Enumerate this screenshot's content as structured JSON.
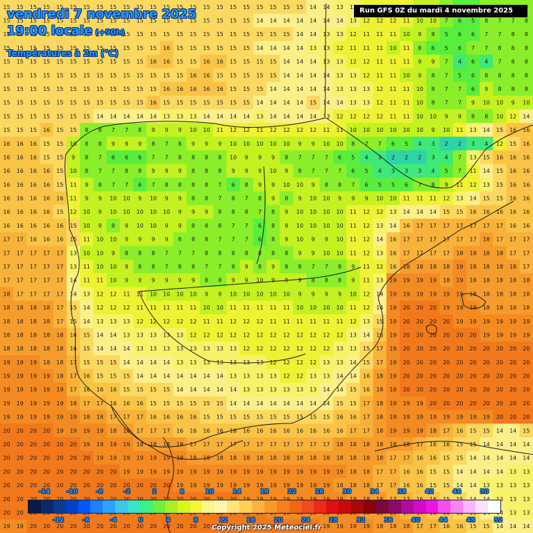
{
  "header": {
    "date_line": "vendredi 7 novembre 2025",
    "time_line": "19:00 locale",
    "offset": "(+90h)",
    "variable": "Températures à 2m (°C)",
    "run_info": "Run GFS 0Z du mardi 4 novembre 2025"
  },
  "legend": {
    "top_labels": [
      "-14",
      "-10",
      "-6",
      "-2",
      "2",
      "6",
      "10",
      "14",
      "18",
      "22",
      "26",
      "30",
      "34",
      "38",
      "42",
      "46",
      "50"
    ],
    "bottom_labels": [
      "-12",
      "-8",
      "-4",
      "0",
      "4",
      "8",
      "12",
      "16",
      "20",
      "24",
      "28",
      "32",
      "36",
      "40",
      "44",
      "48",
      "52"
    ],
    "colors": [
      "#0b1a4a",
      "#0a2a6b",
      "#0a3b8f",
      "#0043c7",
      "#0058ff",
      "#1e80ff",
      "#2aa3ff",
      "#3cc6f0",
      "#3be3c8",
      "#3ef08a",
      "#6ff03c",
      "#a6f02a",
      "#d8f51f",
      "#f5f536",
      "#f8f58a",
      "#fff7b0",
      "#fde47a",
      "#fccf55",
      "#fbb33c",
      "#f89a28",
      "#f6801c",
      "#f46418",
      "#f24a1c",
      "#ee2a1c",
      "#e30e12",
      "#c80a0a",
      "#a80808",
      "#8a0606",
      "#7a0a3a",
      "#8c0a6a",
      "#b00aa0",
      "#d30ac8",
      "#ee14e4",
      "#f24ef0",
      "#f685f4",
      "#fab6f8",
      "#fde0fc",
      "#ffffff"
    ]
  },
  "grid_values": [
    "15 15 15 15 15 15 15 15 15 15 15 15 15 15 15 15 15 15 15 15 15 15 15 14 14 13 13 12 12 12 11 10 10 7 6 5 8 7 7 8",
    "15 15 15 15 15 15 15 15 15 15 15 15 15 15 15 15 15 15 15 14 14 14 14 14 14 14 13 12 12 12 11 10 10 7 6 5 8 7 7 8",
    "15 15 15 15 15 15 15 15 15 15 15 15 15 15 15 15 15 15 15 15 15 15 14 14 13 13 12 11 11 11 10 9 8 5 6 6 7 7 8 8",
    "15 15 15 15 15 15 15 15 15 15 15 15 16 15 15 15 15 15 15 14 14 14 14 13 13 12 11 11 11 10 11 8 6 5 6 7 7 8 8 8",
    "15 15 15 15 15 15 15 15 15 15 15 16 16 15 15 16 16 15 15 15 15 14 14 14 13 13 12 12 11 11 11 9 9 7 4 6 4 7 8 8",
    "15 15 15 15 15 15 15 15 15 15 15 15 15 15 16 16 15 15 15 15 15 14 14 14 14 13 13 12 11 11 10 9 8 7 5 6 8 8 8 8",
    "15 15 15 15 15 15 15 15 15 15 15 15 16 16 16 16 16 15 15 15 14 14 14 14 14 13 13 13 12 11 11 10 8 7 7 6 9 8 8 8",
    "15 15 15 15 15 15 15 15 15 15 15 16 15 15 15 15 15 15 15 14 14 14 14 15 14 14 13 13 12 11 11 10 8 7 7 9 10 10 9 10",
    "15 15 15 15 15 15 15 14 14 14 14 14 13 13 13 14 14 14 14 13 14 14 14 14 13 12 12 12 12 11 11 10 10 9 9 8 8 10 12 14",
    "15 15 15 16 15 15 8 8 7 7 8 9 9 9 10 10 11 12 12 11 12 12 12 12 11 11 10 10 10 10 10 10 9 10 11 13 14 15 16 16",
    "16 16 16 15 15 10 8 8 9 9 9 8 7 8 9 9 9 10 10 10 10 10 9 9 10 10 8 7 7 6 5 4 3 2 2 3 4 12 15 16",
    "16 16 16 15 15 9 8 7 6 6 6 7 7 8 8 8 8 10 9 9 9 8 7 7 7 6 5 4 3 2 2 2 3 4 7 13 15 16 16 16",
    "16 16 16 16 15 10 8 7 7 8 8 9 9 9 8 8 8 9 9 9 10 9 8 7 7 7 6 5 4 3 3 3 4 5 7 11 14 15 16 16",
    "16 16 16 16 15 11 9 8 7 7 6 7 8 8 8 8 7 6 8 9 9 10 10 9 8 8 7 6 5 5 6 7 8 9 11 12 13 15 16 16",
    "16 16 16 16 16 11 9 9 10 10 9 10 9 9 8 8 7 8 7 8 9 8 9 10 10 9 9 9 10 10 11 11 11 12 13 14 15 15 16 16",
    "16 16 16 16 15 12 10 9 10 10 10 10 10 9 9 9 8 8 8 7 8 9 10 10 10 10 11 12 12 13 14 14 14 15 15 16 16 16 16 16",
    "16 16 16 16 16 15 10 9 8 9 10 10 9 9 8 8 8 7 7 6 8 9 10 10 10 10 11 12 13 14 16 17 17 17 17 17 17 17 16 16",
    "17 17 16 16 16 15 11 10 10 9 9 9 9 8 8 8 7 7 7 6 8 9 10 9 9 10 11 12 14 16 17 17 17 17 17 17 18 17 17 17",
    "17 17 17 17 17 13 10 10 9 8 8 8 7 7 7 8 8 8 8 8 8 8 9 9 10 10 11 12 13 16 17 17 17 17 18 18 18 18 17 17",
    "17 17 17 17 17 13 11 10 10 9 8 8 7 8 8 7 7 8 9 8 9 8 8 7 7 8 9 11 12 16 18 18 18 18 19 18 18 18 18 17",
    "17 17 17 17 17 14 11 11 10 9 9 9 9 9 9 8 8 9 9 10 9 9 9 8 8 8 9 11 13 19 19 19 19 18 19 18 18 18 18 18",
    "18 17 17 17 17 14 13 12 12 11 11 10 10 10 10 9 9 10 10 10 10 10 9 9 9 9 10 12 14 19 19 19 19 19 19 18 18 18 18 18",
    "18 18 18 18 17 15 14 12 12 12 11 11 11 11 11 10 10 11 11 11 11 11 10 10 10 10 11 12 14 19 20 20 20 19 19 19 18 18 18 18",
    "18 18 18 18 17 15 14 13 13 13 12 12 12 12 12 11 11 12 12 12 11 11 11 11 11 11 12 13 15 19 20 20 20 20 19 19 19 19 19 19",
    "18 18 18 18 18 16 15 14 14 13 13 13 13 13 12 12 12 12 12 12 12 12 12 12 12 12 13 14 16 19 20 20 20 20 20 20 19 19 19 19",
    "18 18 18 18 18 16 15 14 14 14 13 13 13 13 13 13 13 13 12 12 12 12 12 12 12 13 13 15 17 19 20 20 20 20 20 20 20 20 20 20",
    "19 19 19 18 18 17 15 15 15 14 14 14 14 13 13 13 13 13 13 13 12 12 12 12 13 13 14 15 17 19 20 20 20 20 20 20 20 20 20 20",
    "19 19 19 19 18 17 16 15 15 15 14 14 14 14 14 14 14 13 13 13 13 12 12 13 13 14 14 16 18 19 20 20 20 20 20 20 20 20 20 20",
    "19 19 19 19 19 17 16 16 16 15 15 15 15 14 14 14 14 14 13 13 13 13 13 13 14 14 15 16 18 19 20 20 20 20 20 20 20 20 20 20",
    "19 19 19 19 19 18 17 17 16 16 16 15 15 15 15 15 15 14 14 14 14 14 14 14 14 15 15 17 18 19 19 19 20 20 20 20 20 20 20 20",
    "19 19 19 19 19 19 18 18 17 17 17 16 16 16 16 15 15 15 15 15 15 15 15 15 15 16 16 17 18 19 19 19 19 19 19 19 19 20 20 20",
    "20 20 20 20 19 19 19 19 18 18 17 17 17 16 16 16 16 16 16 16 16 16 16 16 16 16 17 17 18 19 19 19 18 17 16 15 15 14 14 15",
    "20 20 20 20 20 20 19 19 19 19 18 18 18 18 17 17 17 17 17 17 17 17 17 17 17 18 18 18 18 18 18 17 16 16 15 15 14 14 14 14",
    "20 20 20 20 20 20 20 19 19 19 19 19 19 19 18 18 18 18 18 18 18 18 18 18 18 18 18 18 18 17 17 16 16 15 15 14 14 14 14 14",
    "20 20 20 20 20 20 20 20 20 19 19 19 19 19 19 19 19 19 19 19 19 19 19 19 19 19 18 18 17 17 16 16 15 15 14 14 14 14 13 13",
    "20 20 20 20 20 20 20 20 20 20 20 20 20 19 19 19 19 19 19 19 19 19 19 19 19 18 18 18 17 17 16 16 15 15 14 14 13 13 13 13",
    "20 20 20 20 20 20 20 20 20 20 20 20 20 20 20 20 20 20 19 19 19 19 19 19 19 19 18 18 18 17 17 16 16 15 15 14 14 13 13 13",
    "20 20 20 20 20 20 20 20 20 20 20 20 20 20 20 20 20 20 20 20 19 19 19 19 19 19 19 18 18 18 17 17 16 16 15 15 14 14 13 13",
    "19 19 20 20 20 20 20 20 20 20 20 20 20 20 20 20 20 20 20 20 20 20 20 20 19 19 19 19 18 18 18 17 17 16 16 15 15 14 14 14"
  ],
  "copyright": "Copyright 2025 Meteociel.fr"
}
